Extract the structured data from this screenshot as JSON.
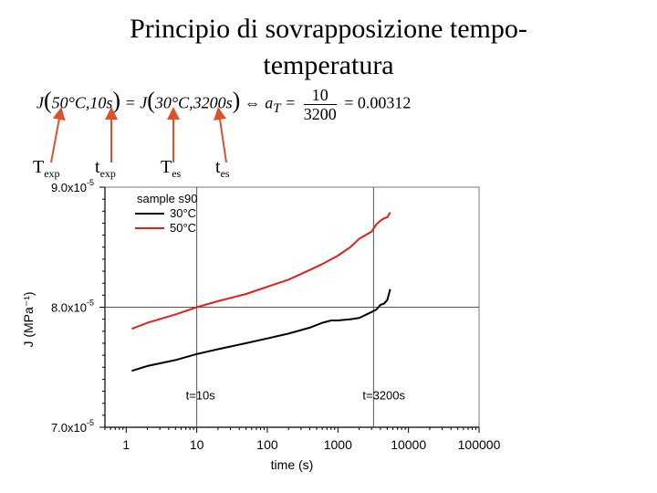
{
  "slide": {
    "title_line1": "Principio di sovrapposizione tempo-",
    "title_line2": "temperatura"
  },
  "formula": {
    "j1": "J",
    "arg1": "50°C,10s",
    "equals": "=",
    "j2": "J",
    "arg2": "30°C,3200s",
    "arrow": "⇔",
    "at": "a",
    "at_sub": "T",
    "equals2": "=",
    "numerator": "10",
    "denominator": "3200",
    "result": "= 0.00312"
  },
  "labels": {
    "texp_T": "T",
    "texp_T_sub": "exp",
    "texp_t": "t",
    "texp_t_sub": "exp",
    "tes_T": "T",
    "tes_T_sub": "es",
    "tes_t": "t",
    "tes_t_sub": "es"
  },
  "colors": {
    "red": "#e02020",
    "black": "#000000",
    "arrow": "#e0502a",
    "grid": "#555555"
  },
  "chart_data": {
    "type": "line",
    "title": "",
    "xlabel": "time (s)",
    "ylabel": "J (MPa⁻¹)",
    "xscale": "log",
    "xlim": [
      0.5,
      100000
    ],
    "ylim": [
      7e-05,
      9e-05
    ],
    "xticks": [
      1,
      10,
      100,
      1000,
      10000,
      100000
    ],
    "xtick_labels": [
      "1",
      "10",
      "100",
      "1000",
      "10000",
      "100000"
    ],
    "yticks": [
      7e-05,
      8e-05,
      9e-05
    ],
    "ytick_labels": [
      "7.0x10",
      "8.0x10",
      "9.0x10"
    ],
    "ytick_exponent": "-5",
    "legend_title": "sample s90",
    "legend_position": "top-left",
    "series": [
      {
        "name": "30°C",
        "color": "#000000",
        "x": [
          1.2,
          2,
          5,
          10,
          20,
          50,
          100,
          200,
          400,
          600,
          800,
          1000,
          1500,
          2000,
          3000,
          3500,
          4000,
          4500,
          5000,
          5500
        ],
        "y": [
          7.47e-05,
          7.51e-05,
          7.56e-05,
          7.61e-05,
          7.65e-05,
          7.7e-05,
          7.74e-05,
          7.78e-05,
          7.83e-05,
          7.87e-05,
          7.89e-05,
          7.89e-05,
          7.9e-05,
          7.91e-05,
          7.96e-05,
          7.98e-05,
          8.02e-05,
          8.03e-05,
          8.06e-05,
          8.15e-05
        ]
      },
      {
        "name": "50°C",
        "color": "#e02020",
        "x": [
          1.2,
          2,
          5,
          10,
          20,
          50,
          100,
          200,
          400,
          600,
          1000,
          1500,
          2000,
          3000,
          3500,
          4000,
          4500,
          5000,
          5500
        ],
        "y": [
          7.82e-05,
          7.87e-05,
          7.94e-05,
          8e-05,
          8.05e-05,
          8.11e-05,
          8.17e-05,
          8.23e-05,
          8.31e-05,
          8.36e-05,
          8.43e-05,
          8.5e-05,
          8.57e-05,
          8.63e-05,
          8.69e-05,
          8.72e-05,
          8.74e-05,
          8.75e-05,
          8.79e-05
        ]
      }
    ],
    "reference_lines": {
      "vertical": [
        10,
        3200
      ],
      "horizontal": [
        8e-05
      ]
    },
    "annotations": [
      {
        "text": "t=10s",
        "x": 10,
        "y": 7.14e-05
      },
      {
        "text": "t=3200s",
        "x": 3200,
        "y": 7.14e-05
      }
    ]
  }
}
